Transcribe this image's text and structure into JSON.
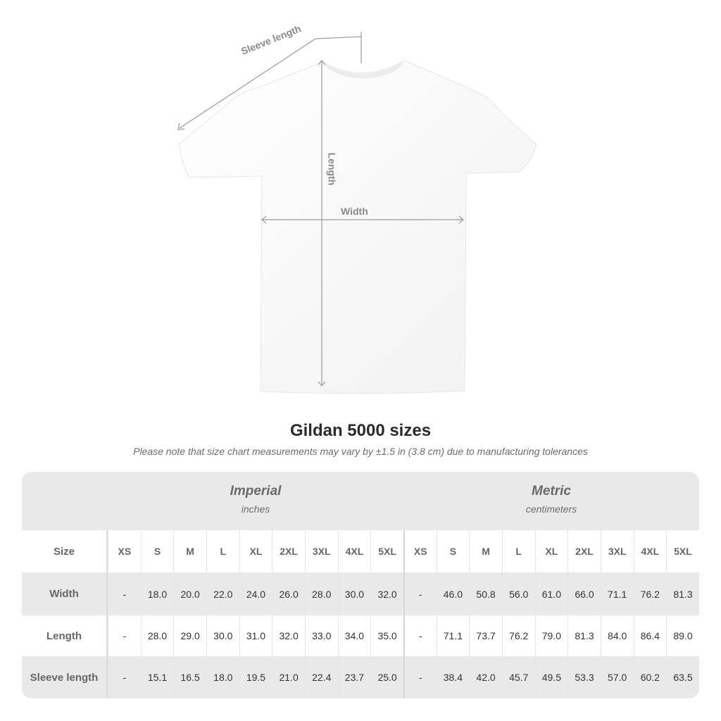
{
  "diagram": {
    "sleeve_label": "Sleeve length",
    "length_label": "Length",
    "width_label": "Width",
    "shirt_color": "#ffffff",
    "measure_color": "#9a9a9a"
  },
  "title": "Gildan 5000 sizes",
  "subtitle": "Please note that size chart measurements may vary by ±1.5 in (3.8 cm) due to manufacturing tolerances",
  "table": {
    "imperial": {
      "title": "Imperial",
      "unit": "inches"
    },
    "metric": {
      "title": "Metric",
      "unit": "centimeters"
    },
    "size_label": "Size",
    "sizes": [
      "XS",
      "S",
      "M",
      "L",
      "XL",
      "2XL",
      "3XL",
      "4XL",
      "5XL"
    ],
    "rows": [
      {
        "label": "Width",
        "imperial": [
          "-",
          "18.0",
          "20.0",
          "22.0",
          "24.0",
          "26.0",
          "28.0",
          "30.0",
          "32.0"
        ],
        "metric": [
          "-",
          "46.0",
          "50.8",
          "56.0",
          "61.0",
          "66.0",
          "71.1",
          "76.2",
          "81.3"
        ]
      },
      {
        "label": "Length",
        "imperial": [
          "-",
          "28.0",
          "29.0",
          "30.0",
          "31.0",
          "32.0",
          "33.0",
          "34.0",
          "35.0"
        ],
        "metric": [
          "-",
          "71.1",
          "73.7",
          "76.2",
          "79.0",
          "81.3",
          "84.0",
          "86.4",
          "89.0"
        ]
      },
      {
        "label": "Sleeve length",
        "imperial": [
          "-",
          "15.1",
          "16.5",
          "18.0",
          "19.5",
          "21.0",
          "22.4",
          "23.7",
          "25.0"
        ],
        "metric": [
          "-",
          "38.4",
          "42.0",
          "45.7",
          "49.5",
          "53.3",
          "57.0",
          "60.2",
          "63.5"
        ]
      }
    ]
  }
}
